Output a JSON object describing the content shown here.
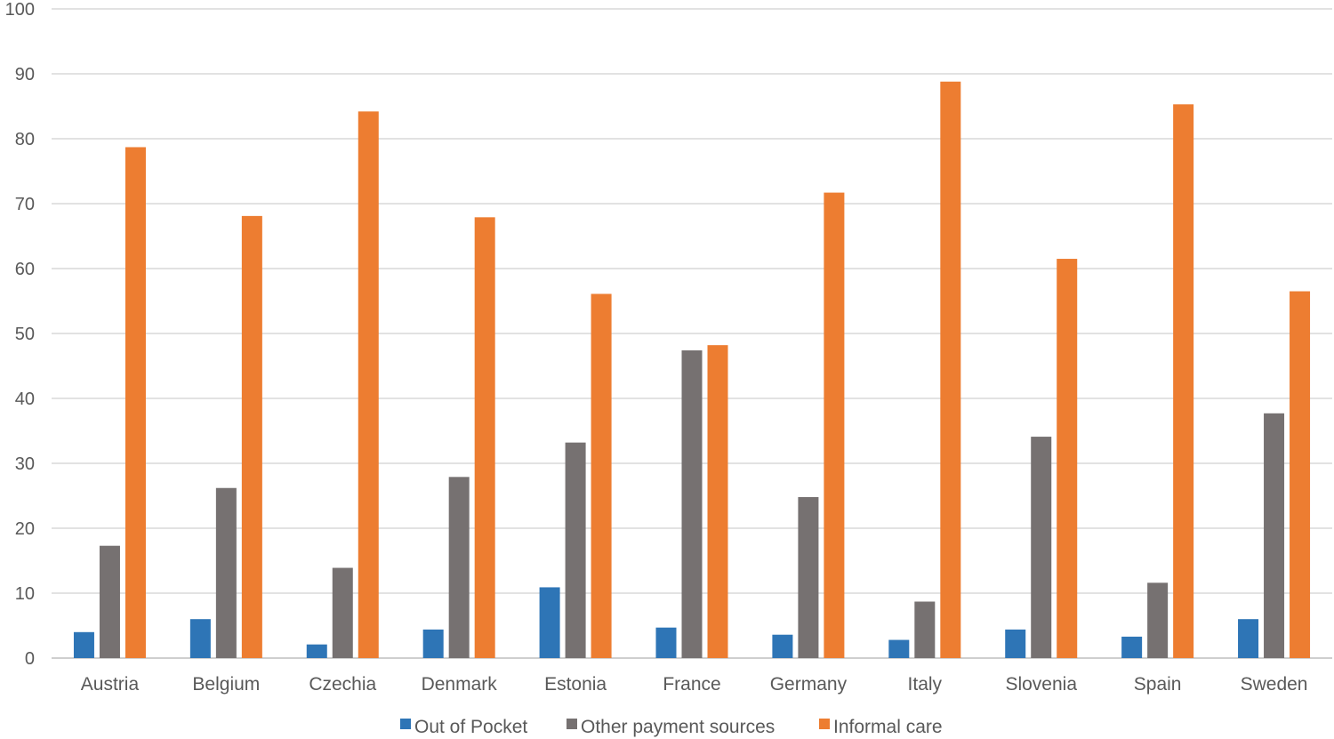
{
  "chart_data": {
    "type": "bar",
    "title": "",
    "xlabel": "",
    "ylabel": "",
    "ylim": [
      0,
      100
    ],
    "yticks": [
      0,
      10,
      20,
      30,
      40,
      50,
      60,
      70,
      80,
      90,
      100
    ],
    "grid": true,
    "legend_position": "bottom",
    "categories": [
      "Austria",
      "Belgium",
      "Czechia",
      "Denmark",
      "Estonia",
      "France",
      "Germany",
      "Italy",
      "Slovenia",
      "Spain",
      "Sweden"
    ],
    "series": [
      {
        "name": "Out of Pocket",
        "color": "#2e75b6",
        "values": [
          4.0,
          6.0,
          2.1,
          4.4,
          10.9,
          4.7,
          3.6,
          2.8,
          4.4,
          3.3,
          6.0
        ]
      },
      {
        "name": "Other payment sources",
        "color": "#767171",
        "values": [
          17.3,
          26.2,
          13.9,
          27.9,
          33.2,
          47.4,
          24.8,
          8.7,
          34.1,
          11.6,
          37.7
        ]
      },
      {
        "name": "Informal care",
        "color": "#ed7d31",
        "values": [
          78.7,
          68.1,
          84.2,
          67.9,
          56.1,
          48.2,
          71.7,
          88.8,
          61.5,
          85.3,
          56.5
        ]
      }
    ]
  }
}
